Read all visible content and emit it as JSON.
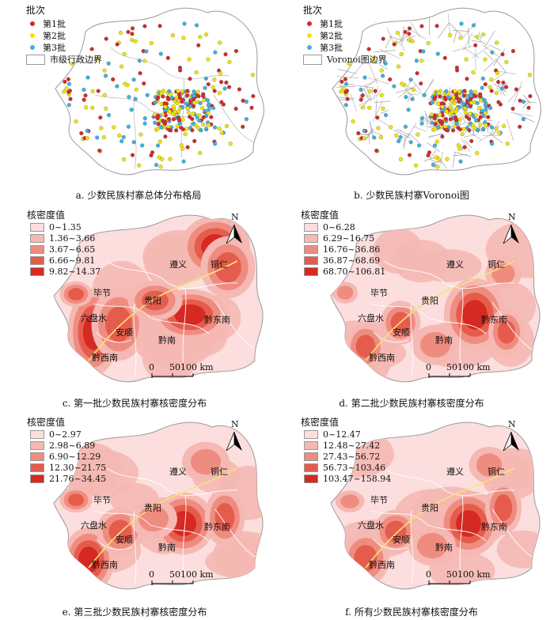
{
  "panels": [
    {
      "id": "a",
      "caption": "a. 少数民族村寨总体分布格局",
      "legend_title": "批次",
      "legend": [
        {
          "label": "第1批",
          "color": "#d62828"
        },
        {
          "label": "第2批",
          "color": "#f2e600"
        },
        {
          "label": "第3批",
          "color": "#3fb0e0"
        },
        {
          "label": "市级行政边界",
          "color": "#ffffff"
        }
      ]
    },
    {
      "id": "b",
      "caption": "b. 少数民族村寨Voronoi图",
      "legend_title": "批次",
      "legend": [
        {
          "label": "第1批",
          "color": "#d62828"
        },
        {
          "label": "第2批",
          "color": "#f2e600"
        },
        {
          "label": "第3批",
          "color": "#3fb0e0"
        },
        {
          "label": "Voronoi图边界",
          "color": "#ffffff"
        }
      ]
    },
    {
      "id": "c",
      "caption": "c. 第一批少数民族村寨核密度分布",
      "legend_title": "核密度值",
      "legend": [
        {
          "label": "0~1.35",
          "color": "#fbdedd"
        },
        {
          "label": "1.36~3.66",
          "color": "#f5b8b2"
        },
        {
          "label": "3.67~6.65",
          "color": "#ef8c80"
        },
        {
          "label": "6.66~9.81",
          "color": "#e65c4c"
        },
        {
          "label": "9.82~14.37",
          "color": "#d42a22"
        }
      ]
    },
    {
      "id": "d",
      "caption": "d. 第二批少数民族村寨核密度分布",
      "legend_title": "核密度值",
      "legend": [
        {
          "label": "0~6.28",
          "color": "#fbdedd"
        },
        {
          "label": "6.29~16.75",
          "color": "#f5b8b2"
        },
        {
          "label": "16.76~36.86",
          "color": "#ef8c80"
        },
        {
          "label": "36.87~68.69",
          "color": "#e65c4c"
        },
        {
          "label": "68.70~106.81",
          "color": "#d42a22"
        }
      ]
    },
    {
      "id": "e",
      "caption": "e. 第三批少数民族村寨核密度分布",
      "legend_title": "核密度值",
      "legend": [
        {
          "label": "0~2.97",
          "color": "#fbdedd"
        },
        {
          "label": "2.98~6.89",
          "color": "#f5b8b2"
        },
        {
          "label": "6.90~12.29",
          "color": "#ef8c80"
        },
        {
          "label": "12.30~21.75",
          "color": "#e65c4c"
        },
        {
          "label": "21.76~34.45",
          "color": "#d42a22"
        }
      ]
    },
    {
      "id": "f",
      "caption": "f. 所有少数民族村寨核密度分布",
      "legend_title": "核密度值",
      "legend": [
        {
          "label": "0~12.47",
          "color": "#fbdedd"
        },
        {
          "label": "12.48~27.42",
          "color": "#f5b8b2"
        },
        {
          "label": "27.43~56.72",
          "color": "#ef8c80"
        },
        {
          "label": "56.73~103.46",
          "color": "#e65c4c"
        },
        {
          "label": "103.47~158.94",
          "color": "#d42a22"
        }
      ]
    }
  ],
  "cities": [
    "遵义",
    "铜仁",
    "毕节",
    "贵阳",
    "六盘水",
    "黔东南",
    "安顺",
    "黔南",
    "黔西南"
  ],
  "north": "N",
  "scale": {
    "ticks": [
      "0",
      "50",
      "100 km"
    ]
  }
}
